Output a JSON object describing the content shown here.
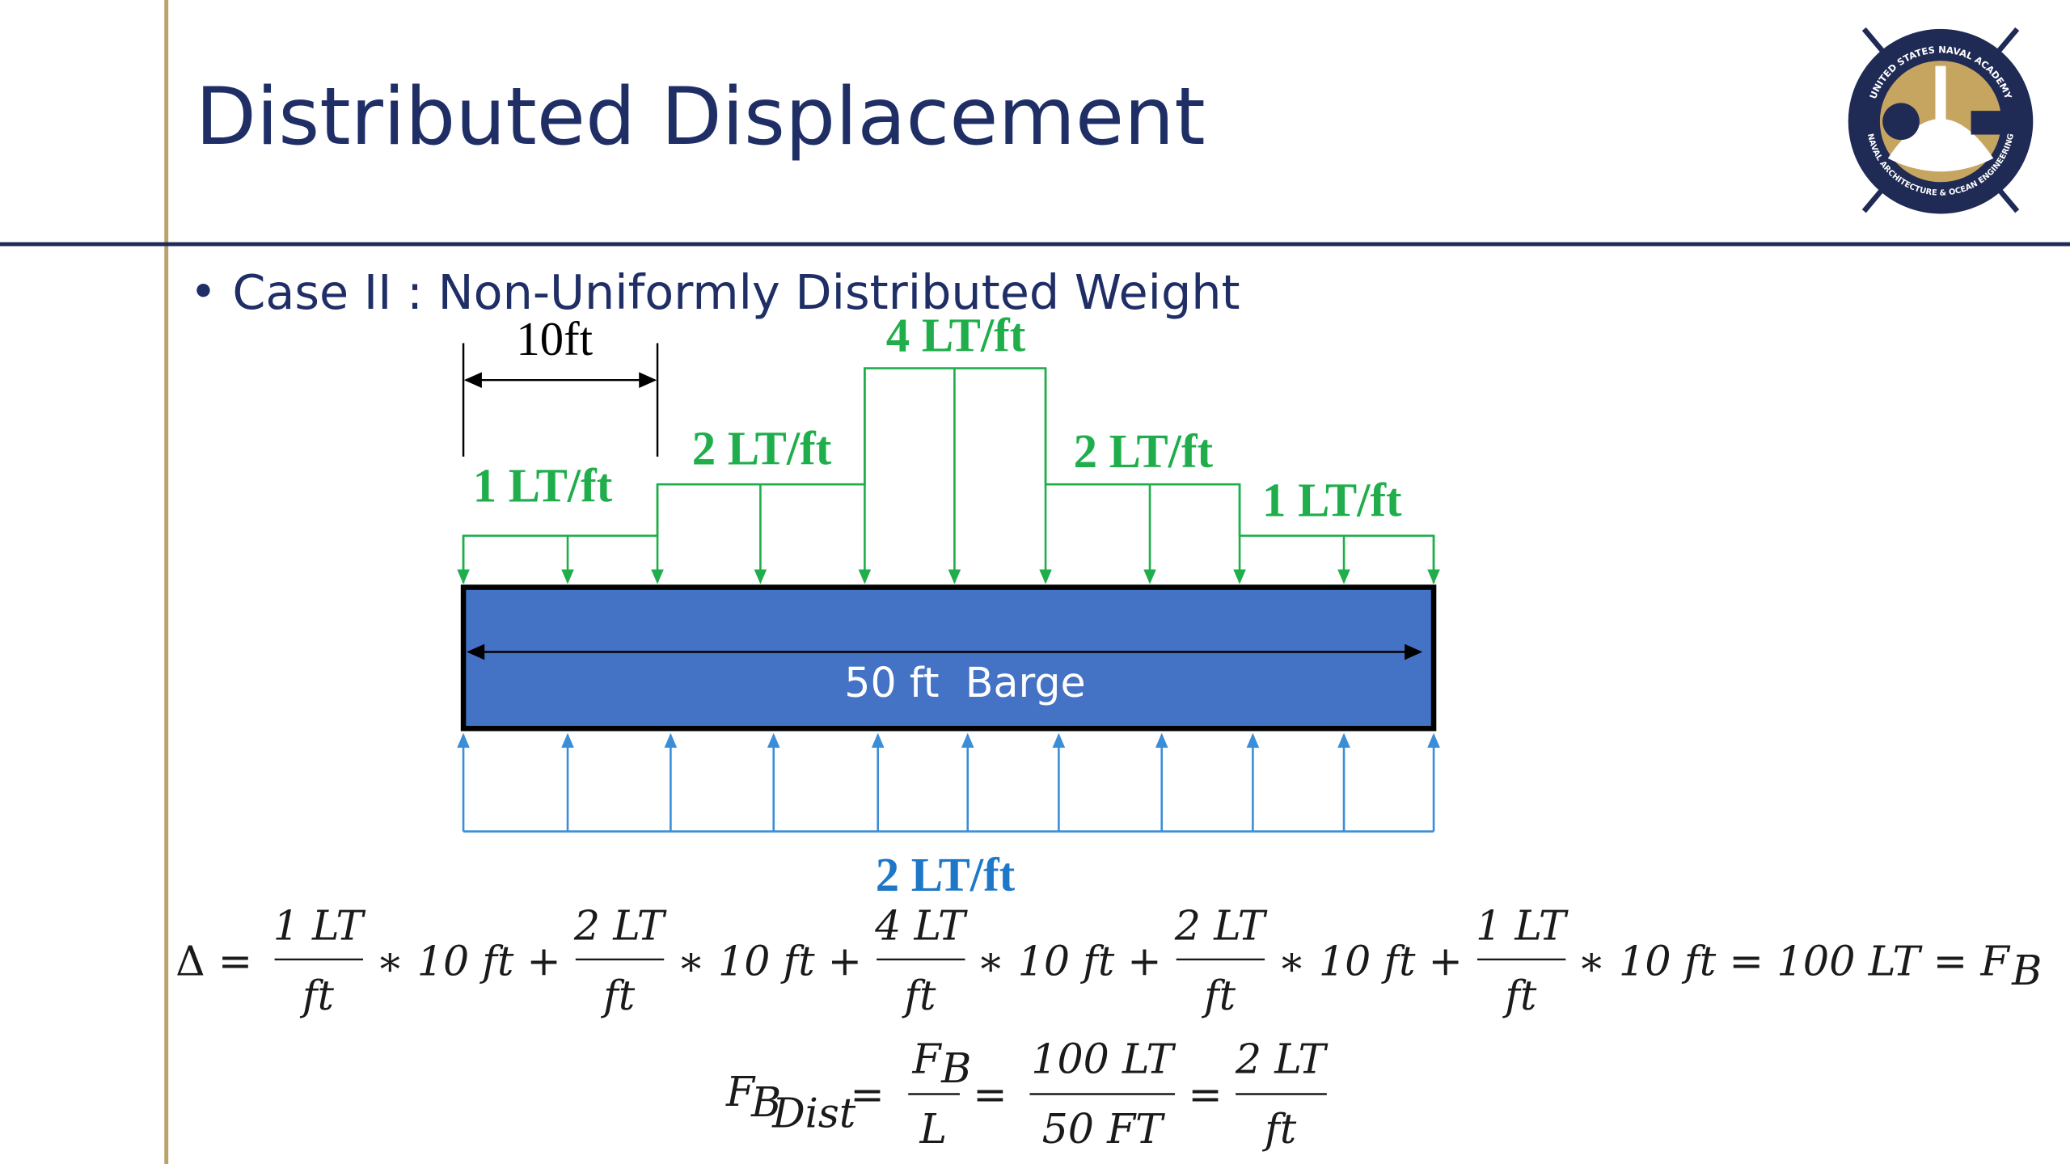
{
  "header": {
    "title": "Distributed Displacement",
    "logo": {
      "top_text": "UNITED STATES NAVAL ACADEMY",
      "bottom_text": "NAVAL ARCHITECTURE & OCEAN ENGINEERING"
    }
  },
  "bullet": "Case II : Non-Uniformly Distributed Weight",
  "diagram": {
    "dimension": "10ft",
    "loads": [
      "1 LT/ft",
      "2 LT/ft",
      "4 LT/ft",
      "2 LT/ft",
      "1 LT/ft"
    ],
    "barge": "50 ft  Barge",
    "buoyancy": "2 LT/ft"
  },
  "equation1": {
    "lhs": "Δ =",
    "terms": [
      {
        "num": "1 LT",
        "den": "ft",
        "rest": "∗ 10 ft +"
      },
      {
        "num": "2 LT",
        "den": "ft",
        "rest": "∗ 10 ft +"
      },
      {
        "num": "4 LT",
        "den": "ft",
        "rest": "∗ 10 ft +"
      },
      {
        "num": "2 LT",
        "den": "ft",
        "rest": "∗ 10 ft +"
      },
      {
        "num": "1 LT",
        "den": "ft",
        "rest": "∗ 10 ft = 100 LT = F"
      }
    ],
    "sub": "B"
  },
  "equation2": {
    "lhs": "F",
    "lhs_sub": "B",
    "lhs_subsub": "Dist",
    "eq": "=",
    "fractions": [
      {
        "num": "F",
        "num_sub": "B",
        "den": "L"
      },
      {
        "num": "100 LT",
        "den": "50 FT"
      },
      {
        "num": "2 LT",
        "den": "ft"
      }
    ]
  }
}
